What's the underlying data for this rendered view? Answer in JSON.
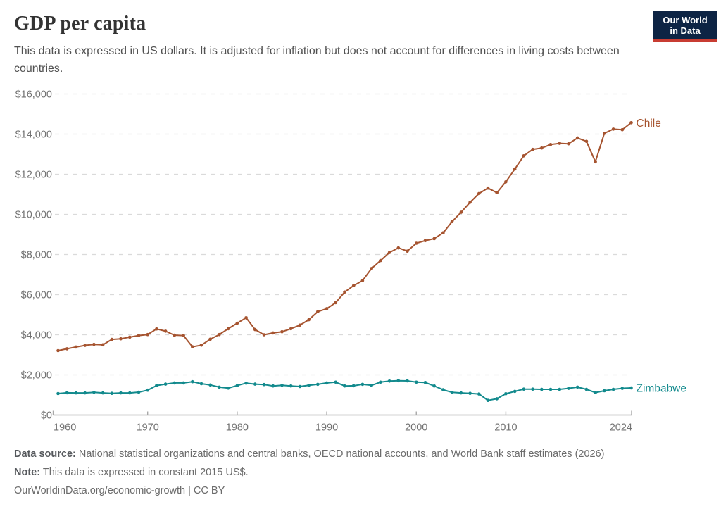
{
  "header": {
    "title": "GDP per capita",
    "subtitle": "This data is expressed in US dollars. It is adjusted for inflation but does not account for differences in living costs between countries."
  },
  "logo": {
    "line1": "Our World",
    "line2": "in Data",
    "bg_color": "#0D2444",
    "accent_color": "#C83C32",
    "text_color": "#FFFFFF"
  },
  "chart_data": {
    "type": "line",
    "title": "GDP per capita",
    "xlabel": "",
    "ylabel": "",
    "ylim": [
      0,
      16000
    ],
    "ytick_step": 2000,
    "ytick_labels": [
      "$0",
      "$2,000",
      "$4,000",
      "$6,000",
      "$8,000",
      "$10,000",
      "$12,000",
      "$14,000",
      "$16,000"
    ],
    "xticks": [
      1960,
      1970,
      1980,
      1990,
      2000,
      2010,
      2024
    ],
    "grid": "dashed-horizontal",
    "legend": "end-of-line-labels",
    "x": [
      1960,
      1961,
      1962,
      1963,
      1964,
      1965,
      1966,
      1967,
      1968,
      1969,
      1970,
      1971,
      1972,
      1973,
      1974,
      1975,
      1976,
      1977,
      1978,
      1979,
      1980,
      1981,
      1982,
      1983,
      1984,
      1985,
      1986,
      1987,
      1988,
      1989,
      1990,
      1991,
      1992,
      1993,
      1994,
      1995,
      1996,
      1997,
      1998,
      1999,
      2000,
      2001,
      2002,
      2003,
      2004,
      2005,
      2006,
      2007,
      2008,
      2009,
      2010,
      2011,
      2012,
      2013,
      2014,
      2015,
      2016,
      2017,
      2018,
      2019,
      2020,
      2021,
      2022,
      2023,
      2024
    ],
    "series": [
      {
        "name": "Chile",
        "color": "#A65430",
        "values": [
          3210,
          3300,
          3390,
          3470,
          3520,
          3500,
          3770,
          3800,
          3880,
          3960,
          4010,
          4290,
          4180,
          3980,
          3960,
          3400,
          3480,
          3780,
          4010,
          4300,
          4580,
          4850,
          4260,
          4000,
          4090,
          4150,
          4300,
          4480,
          4750,
          5150,
          5300,
          5600,
          6130,
          6450,
          6700,
          7300,
          7700,
          8100,
          8330,
          8170,
          8560,
          8690,
          8790,
          9080,
          9640,
          10100,
          10600,
          11040,
          11310,
          11080,
          11620,
          12260,
          12920,
          13240,
          13310,
          13480,
          13540,
          13520,
          13810,
          13640,
          12620,
          14040,
          14250,
          14220,
          14570
        ]
      },
      {
        "name": "Zimbabwe",
        "color": "#128A8D",
        "values": [
          1070,
          1110,
          1100,
          1100,
          1130,
          1100,
          1080,
          1100,
          1100,
          1140,
          1240,
          1470,
          1540,
          1600,
          1600,
          1660,
          1560,
          1500,
          1390,
          1340,
          1470,
          1590,
          1540,
          1520,
          1450,
          1480,
          1450,
          1420,
          1480,
          1530,
          1600,
          1640,
          1450,
          1460,
          1530,
          1480,
          1640,
          1690,
          1710,
          1700,
          1640,
          1620,
          1450,
          1260,
          1130,
          1100,
          1080,
          1050,
          730,
          810,
          1060,
          1180,
          1290,
          1290,
          1280,
          1280,
          1280,
          1330,
          1390,
          1280,
          1120,
          1210,
          1280,
          1330,
          1350
        ]
      }
    ]
  },
  "axis_colors": {
    "grid": "#dadada",
    "axis_line": "#a8a8a8",
    "tick_label": "#737373"
  },
  "footer": {
    "data_source_label": "Data source:",
    "data_source_text": "National statistical organizations and central banks, OECD national accounts, and World Bank staff estimates (2026)",
    "note_label": "Note:",
    "note_text": "This data is expressed in constant 2015 US$.",
    "license_line": "OurWorldinData.org/economic-growth | CC BY"
  }
}
